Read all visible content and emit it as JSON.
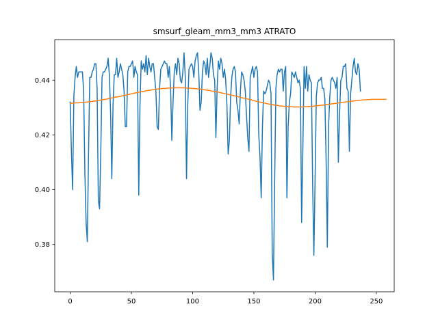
{
  "chart_data": {
    "type": "line",
    "title": "smsurf_gleam_mm3_mm3 ATRATO",
    "xlabel": "",
    "ylabel": "",
    "xlim": [
      -12.6,
      264.6
    ],
    "ylim": [
      0.3627,
      0.4548
    ],
    "grid": false,
    "x_ticks": [
      0,
      50,
      100,
      150,
      200,
      250
    ],
    "y_ticks": [
      0.38,
      0.4,
      0.42,
      0.44
    ],
    "y_tick_labels": [
      "0.38",
      "0.40",
      "0.42",
      "0.44"
    ],
    "x_step": 1,
    "series": [
      {
        "color": "#1f77b4",
        "values": [
          0.432,
          0.414,
          0.4,
          0.434,
          0.441,
          0.445,
          0.441,
          0.443,
          0.443,
          0.443,
          0.443,
          0.436,
          0.406,
          0.388,
          0.381,
          0.414,
          0.441,
          0.441,
          0.443,
          0.444,
          0.446,
          0.446,
          0.437,
          0.396,
          0.393,
          0.414,
          0.441,
          0.443,
          0.443,
          0.444,
          0.445,
          0.448,
          0.442,
          0.428,
          0.404,
          0.431,
          0.442,
          0.442,
          0.448,
          0.441,
          0.443,
          0.446,
          0.444,
          0.442,
          0.436,
          0.423,
          0.423,
          0.443,
          0.445,
          0.445,
          0.446,
          0.447,
          0.441,
          0.445,
          0.443,
          0.442,
          0.398,
          0.431,
          0.447,
          0.444,
          0.446,
          0.443,
          0.449,
          0.442,
          0.448,
          0.445,
          0.443,
          0.446,
          0.446,
          0.441,
          0.436,
          0.423,
          0.422,
          0.437,
          0.444,
          0.445,
          0.446,
          0.447,
          0.446,
          0.446,
          0.441,
          0.445,
          0.437,
          0.418,
          0.432,
          0.443,
          0.446,
          0.442,
          0.448,
          0.446,
          0.44,
          0.439,
          0.443,
          0.45,
          0.441,
          0.404,
          0.431,
          0.444,
          0.445,
          0.446,
          0.445,
          0.441,
          0.447,
          0.449,
          0.45,
          0.443,
          0.429,
          0.432,
          0.443,
          0.447,
          0.446,
          0.442,
          0.448,
          0.441,
          0.445,
          0.45,
          0.448,
          0.442,
          0.44,
          0.419,
          0.437,
          0.447,
          0.444,
          0.448,
          0.446,
          0.441,
          0.444,
          0.44,
          0.431,
          0.413,
          0.418,
          0.434,
          0.441,
          0.444,
          0.445,
          0.443,
          0.432,
          0.429,
          0.424,
          0.436,
          0.443,
          0.442,
          0.44,
          0.436,
          0.427,
          0.419,
          0.414,
          0.441,
          0.443,
          0.445,
          0.441,
          0.444,
          0.445,
          0.443,
          0.42,
          0.412,
          0.397,
          0.423,
          0.436,
          0.435,
          0.436,
          0.438,
          0.44,
          0.439,
          0.435,
          0.377,
          0.367,
          0.404,
          0.437,
          0.442,
          0.444,
          0.443,
          0.444,
          0.444,
          0.436,
          0.443,
          0.445,
          0.397,
          0.423,
          0.432,
          0.435,
          0.443,
          0.442,
          0.441,
          0.443,
          0.441,
          0.439,
          0.44,
          0.437,
          0.388,
          0.415,
          0.445,
          0.437,
          0.445,
          0.436,
          0.442,
          0.44,
          0.439,
          0.402,
          0.376,
          0.404,
          0.434,
          0.439,
          0.44,
          0.44,
          0.441,
          0.437,
          0.437,
          0.433,
          0.411,
          0.379,
          0.423,
          0.434,
          0.44,
          0.441,
          0.44,
          0.439,
          0.437,
          0.441,
          0.41,
          0.428,
          0.44,
          0.441,
          0.445,
          0.445,
          0.446,
          0.437,
          0.436,
          0.414,
          0.435,
          0.44,
          0.445,
          0.448,
          0.443,
          0.442,
          0.446,
          0.444,
          0.436
        ]
      },
      {
        "color": "#ff7f0e",
        "values": [
          0.4315,
          0.4316,
          0.4316,
          0.4316,
          0.4317,
          0.4317,
          0.4317,
          0.4317,
          0.4318,
          0.4318,
          0.4318,
          0.4319,
          0.4319,
          0.432,
          0.432,
          0.4321,
          0.4321,
          0.4322,
          0.4322,
          0.4323,
          0.4324,
          0.4324,
          0.4325,
          0.4326,
          0.4326,
          0.4327,
          0.4328,
          0.4329,
          0.433,
          0.433,
          0.4331,
          0.4332,
          0.4333,
          0.4334,
          0.4335,
          0.4336,
          0.4337,
          0.4338,
          0.4339,
          0.4339,
          0.434,
          0.4341,
          0.4342,
          0.4343,
          0.4344,
          0.4345,
          0.4346,
          0.4347,
          0.4348,
          0.4349,
          0.435,
          0.4351,
          0.4352,
          0.4353,
          0.4354,
          0.4355,
          0.4356,
          0.4357,
          0.4358,
          0.4358,
          0.4359,
          0.436,
          0.4361,
          0.4362,
          0.4363,
          0.4363,
          0.4364,
          0.4365,
          0.4365,
          0.4366,
          0.4367,
          0.4367,
          0.4368,
          0.4368,
          0.4369,
          0.4369,
          0.437,
          0.437,
          0.437,
          0.4371,
          0.4371,
          0.4371,
          0.4371,
          0.4371,
          0.4372,
          0.4372,
          0.4372,
          0.4372,
          0.4372,
          0.4372,
          0.4372,
          0.4372,
          0.4372,
          0.4372,
          0.4372,
          0.4371,
          0.4371,
          0.4371,
          0.4371,
          0.437,
          0.437,
          0.437,
          0.4369,
          0.4369,
          0.4368,
          0.4368,
          0.4367,
          0.4367,
          0.4366,
          0.4365,
          0.4365,
          0.4364,
          0.4363,
          0.4363,
          0.4362,
          0.4361,
          0.436,
          0.436,
          0.4359,
          0.4358,
          0.4357,
          0.4356,
          0.4355,
          0.4354,
          0.4353,
          0.4352,
          0.4351,
          0.435,
          0.4349,
          0.4348,
          0.4347,
          0.4346,
          0.4345,
          0.4344,
          0.4343,
          0.4342,
          0.4341,
          0.434,
          0.4339,
          0.4337,
          0.4336,
          0.4335,
          0.4334,
          0.4333,
          0.4332,
          0.4331,
          0.433,
          0.4329,
          0.4328,
          0.4326,
          0.4325,
          0.4324,
          0.4323,
          0.4322,
          0.4321,
          0.432,
          0.4319,
          0.4318,
          0.4317,
          0.4316,
          0.4315,
          0.4314,
          0.4313,
          0.4312,
          0.4311,
          0.4311,
          0.431,
          0.4309,
          0.4308,
          0.4308,
          0.4307,
          0.4306,
          0.4306,
          0.4305,
          0.4305,
          0.4304,
          0.4304,
          0.4304,
          0.4303,
          0.4303,
          0.4303,
          0.4303,
          0.4302,
          0.4302,
          0.4302,
          0.4302,
          0.4302,
          0.4302,
          0.4302,
          0.4302,
          0.4302,
          0.4303,
          0.4303,
          0.4303,
          0.4303,
          0.4304,
          0.4304,
          0.4304,
          0.4305,
          0.4305,
          0.4306,
          0.4306,
          0.4307,
          0.4307,
          0.4308,
          0.4308,
          0.4309,
          0.4309,
          0.431,
          0.4311,
          0.4311,
          0.4312,
          0.4312,
          0.4313,
          0.4314,
          0.4314,
          0.4315,
          0.4315,
          0.4316,
          0.4317,
          0.4317,
          0.4318,
          0.4319,
          0.4319,
          0.432,
          0.432,
          0.4321,
          0.4322,
          0.4322,
          0.4323,
          0.4323,
          0.4324,
          0.4324,
          0.4325,
          0.4325,
          0.4326,
          0.4326,
          0.4327,
          0.4327,
          0.4328,
          0.4328,
          0.4328,
          0.4329,
          0.4329,
          0.4329,
          0.4329,
          0.433,
          0.433,
          0.433,
          0.433,
          0.433,
          0.433,
          0.433,
          0.433,
          0.433,
          0.433,
          0.433,
          0.433,
          0.433
        ]
      }
    ]
  }
}
